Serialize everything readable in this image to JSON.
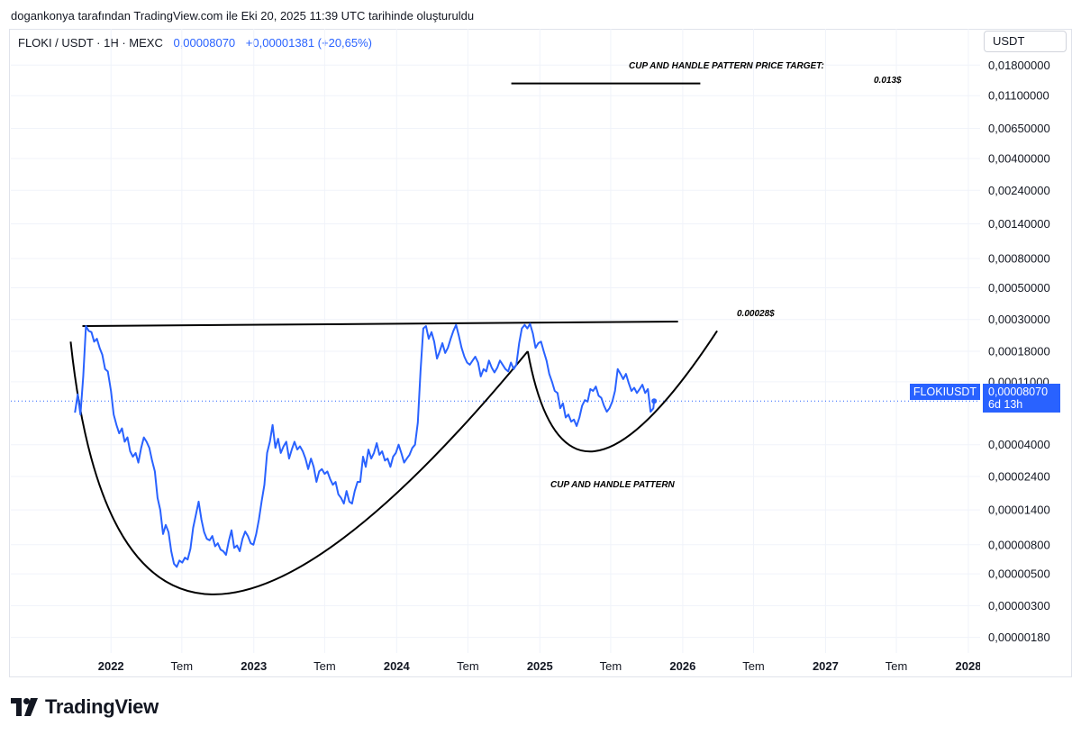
{
  "caption": "dogankonya tarafından TradingView.com ile Eki 20, 2025 11:39 UTC tarihinde oluşturuldu",
  "legend": {
    "symbol": "FLOKI / USDT · 1H · MEXC",
    "price": "0,00008070",
    "change": "+0,00001381 (+20,65%)"
  },
  "unit_label": "USDT",
  "price_tag": {
    "symbol": "FLOKIUSDT",
    "price": "0,00008070",
    "countdown": "6d 13h"
  },
  "brand": "TradingView",
  "colors": {
    "series": "#2962ff",
    "annotation": "#000000",
    "grid": "#f0f3fa",
    "tag": "#2962ff"
  },
  "chart_data": {
    "type": "line",
    "y_scale": "log",
    "ylim": [
      1.4e-06,
      0.0215
    ],
    "xlim": [
      "2021-04-20",
      "2028-01-31"
    ],
    "grid": true,
    "y_ticks": [
      {
        "value": 0.018,
        "label": "0,01800000"
      },
      {
        "value": 0.011,
        "label": "0,01100000"
      },
      {
        "value": 0.0065,
        "label": "0,00650000"
      },
      {
        "value": 0.004,
        "label": "0,00400000"
      },
      {
        "value": 0.0024,
        "label": "0,00240000"
      },
      {
        "value": 0.0014,
        "label": "0,00140000"
      },
      {
        "value": 0.0008,
        "label": "0,00080000"
      },
      {
        "value": 0.0005,
        "label": "0,00050000"
      },
      {
        "value": 0.0003,
        "label": "0,00030000"
      },
      {
        "value": 0.00018,
        "label": "0,00018000"
      },
      {
        "value": 0.00011,
        "label": "0,00011000"
      },
      {
        "value": 4e-05,
        "label": "0,00004000"
      },
      {
        "value": 2.4e-05,
        "label": "0,00002400"
      },
      {
        "value": 1.4e-05,
        "label": "0,00001400"
      },
      {
        "value": 8e-06,
        "label": "0,00000800"
      },
      {
        "value": 5e-06,
        "label": "0,00000500"
      },
      {
        "value": 3e-06,
        "label": "0,00000300"
      },
      {
        "value": 1.8e-06,
        "label": "0,00000180"
      }
    ],
    "x_ticks": [
      {
        "date": "2022-01-01",
        "label": "2022",
        "year": true
      },
      {
        "date": "2022-07-01",
        "label": "Tem",
        "year": false
      },
      {
        "date": "2023-01-01",
        "label": "2023",
        "year": true
      },
      {
        "date": "2023-07-01",
        "label": "Tem",
        "year": false
      },
      {
        "date": "2024-01-01",
        "label": "2024",
        "year": true
      },
      {
        "date": "2024-07-01",
        "label": "Tem",
        "year": false
      },
      {
        "date": "2025-01-01",
        "label": "2025",
        "year": true
      },
      {
        "date": "2025-07-01",
        "label": "Tem",
        "year": false
      },
      {
        "date": "2026-01-01",
        "label": "2026",
        "year": true
      },
      {
        "date": "2026-07-01",
        "label": "Tem",
        "year": false
      },
      {
        "date": "2027-01-01",
        "label": "2027",
        "year": true
      },
      {
        "date": "2027-07-01",
        "label": "Tem",
        "year": false
      },
      {
        "date": "2028-01-01",
        "label": "2028",
        "year": true
      }
    ],
    "last_price": 8.07e-05,
    "series": [
      {
        "points": [
          [
            "2021-10-01",
            6.7e-05
          ],
          [
            "2021-10-08",
            9e-05
          ],
          [
            "2021-10-15",
            6.5e-05
          ],
          [
            "2021-10-22",
            0.00012
          ],
          [
            "2021-10-29",
            0.00027
          ],
          [
            "2021-11-05",
            0.00025
          ],
          [
            "2021-11-12",
            0.000245
          ],
          [
            "2021-11-19",
            0.00021
          ],
          [
            "2021-11-26",
            0.00022
          ],
          [
            "2021-12-03",
            0.00019
          ],
          [
            "2021-12-10",
            0.00017
          ],
          [
            "2021-12-17",
            0.000135
          ],
          [
            "2021-12-24",
            0.00013
          ],
          [
            "2022-01-01",
            9.5e-05
          ],
          [
            "2022-01-08",
            6.5e-05
          ],
          [
            "2022-01-15",
            5.5e-05
          ],
          [
            "2022-01-22",
            4.8e-05
          ],
          [
            "2022-01-29",
            5.2e-05
          ],
          [
            "2022-02-05",
            4.2e-05
          ],
          [
            "2022-02-12",
            4.5e-05
          ],
          [
            "2022-02-19",
            3.6e-05
          ],
          [
            "2022-02-26",
            3.3e-05
          ],
          [
            "2022-03-05",
            3.5e-05
          ],
          [
            "2022-03-12",
            3e-05
          ],
          [
            "2022-03-19",
            3.8e-05
          ],
          [
            "2022-03-26",
            4.5e-05
          ],
          [
            "2022-04-02",
            4.2e-05
          ],
          [
            "2022-04-09",
            3.8e-05
          ],
          [
            "2022-04-16",
            3.1e-05
          ],
          [
            "2022-04-23",
            2.6e-05
          ],
          [
            "2022-04-30",
            1.7e-05
          ],
          [
            "2022-05-07",
            1.4e-05
          ],
          [
            "2022-05-14",
            9.5e-06
          ],
          [
            "2022-05-21",
            1.1e-05
          ],
          [
            "2022-05-28",
            9.8e-06
          ],
          [
            "2022-06-04",
            7.2e-06
          ],
          [
            "2022-06-11",
            5.9e-06
          ],
          [
            "2022-06-18",
            5.6e-06
          ],
          [
            "2022-06-25",
            6.2e-06
          ],
          [
            "2022-07-02",
            6e-06
          ],
          [
            "2022-07-09",
            6.5e-06
          ],
          [
            "2022-07-16",
            6.3e-06
          ],
          [
            "2022-07-23",
            7.5e-06
          ],
          [
            "2022-07-30",
            1.05e-05
          ],
          [
            "2022-08-06",
            1.3e-05
          ],
          [
            "2022-08-13",
            1.6e-05
          ],
          [
            "2022-08-20",
            1.2e-05
          ],
          [
            "2022-08-27",
            9.8e-06
          ],
          [
            "2022-09-03",
            8.8e-06
          ],
          [
            "2022-09-10",
            8.6e-06
          ],
          [
            "2022-09-17",
            9.2e-06
          ],
          [
            "2022-09-24",
            7.8e-06
          ],
          [
            "2022-10-01",
            8.2e-06
          ],
          [
            "2022-10-08",
            7.4e-06
          ],
          [
            "2022-10-15",
            7.2e-06
          ],
          [
            "2022-10-22",
            6.8e-06
          ],
          [
            "2022-10-29",
            8.5e-06
          ],
          [
            "2022-11-05",
            1.01e-05
          ],
          [
            "2022-11-12",
            7.6e-06
          ],
          [
            "2022-11-19",
            7.9e-06
          ],
          [
            "2022-11-26",
            7.2e-06
          ],
          [
            "2022-12-03",
            8.8e-06
          ],
          [
            "2022-12-10",
            9.9e-06
          ],
          [
            "2022-12-17",
            9.2e-06
          ],
          [
            "2022-12-24",
            8.2e-06
          ],
          [
            "2022-12-31",
            8e-06
          ],
          [
            "2023-01-07",
            9.5e-06
          ],
          [
            "2023-01-14",
            1.2e-05
          ],
          [
            "2023-01-21",
            1.6e-05
          ],
          [
            "2023-01-28",
            2.1e-05
          ],
          [
            "2023-02-04",
            3.5e-05
          ],
          [
            "2023-02-11",
            4.2e-05
          ],
          [
            "2023-02-18",
            5.5e-05
          ],
          [
            "2023-02-25",
            3.8e-05
          ],
          [
            "2023-03-04",
            4.4e-05
          ],
          [
            "2023-03-11",
            3.5e-05
          ],
          [
            "2023-03-18",
            3.9e-05
          ],
          [
            "2023-03-25",
            4.2e-05
          ],
          [
            "2023-04-01",
            3.2e-05
          ],
          [
            "2023-04-08",
            3.7e-05
          ],
          [
            "2023-04-15",
            4.2e-05
          ],
          [
            "2023-04-22",
            3.7e-05
          ],
          [
            "2023-04-29",
            3.9e-05
          ],
          [
            "2023-05-06",
            3.6e-05
          ],
          [
            "2023-05-13",
            3.2e-05
          ],
          [
            "2023-05-20",
            2.7e-05
          ],
          [
            "2023-05-27",
            3.2e-05
          ],
          [
            "2023-06-03",
            2.8e-05
          ],
          [
            "2023-06-10",
            2.2e-05
          ],
          [
            "2023-06-17",
            2.6e-05
          ],
          [
            "2023-06-24",
            2.7e-05
          ],
          [
            "2023-07-01",
            2.5e-05
          ],
          [
            "2023-07-08",
            2.6e-05
          ],
          [
            "2023-07-15",
            2.3e-05
          ],
          [
            "2023-07-22",
            2.1e-05
          ],
          [
            "2023-07-29",
            2.2e-05
          ],
          [
            "2023-08-05",
            1.8e-05
          ],
          [
            "2023-08-12",
            1.7e-05
          ],
          [
            "2023-08-19",
            1.55e-05
          ],
          [
            "2023-08-26",
            1.9e-05
          ],
          [
            "2023-09-02",
            1.6e-05
          ],
          [
            "2023-09-09",
            1.55e-05
          ],
          [
            "2023-09-16",
            1.9e-05
          ],
          [
            "2023-09-23",
            2.2e-05
          ],
          [
            "2023-09-30",
            2.2e-05
          ],
          [
            "2023-10-07",
            3.3e-05
          ],
          [
            "2023-10-14",
            2.8e-05
          ],
          [
            "2023-10-21",
            3.7e-05
          ],
          [
            "2023-10-28",
            3.2e-05
          ],
          [
            "2023-11-04",
            3.5e-05
          ],
          [
            "2023-11-11",
            4.1e-05
          ],
          [
            "2023-11-18",
            3.4e-05
          ],
          [
            "2023-11-25",
            3.6e-05
          ],
          [
            "2023-12-02",
            3.1e-05
          ],
          [
            "2023-12-09",
            3.2e-05
          ],
          [
            "2023-12-16",
            2.8e-05
          ],
          [
            "2023-12-23",
            3.3e-05
          ],
          [
            "2023-12-30",
            3.5e-05
          ],
          [
            "2024-01-06",
            4e-05
          ],
          [
            "2024-01-13",
            3.5e-05
          ],
          [
            "2024-01-20",
            3e-05
          ],
          [
            "2024-01-27",
            3.2e-05
          ],
          [
            "2024-02-03",
            3.4e-05
          ],
          [
            "2024-02-10",
            3.8e-05
          ],
          [
            "2024-02-17",
            4e-05
          ],
          [
            "2024-02-24",
            5.7e-05
          ],
          [
            "2024-03-02",
            0.00013
          ],
          [
            "2024-03-09",
            0.00026
          ],
          [
            "2024-03-16",
            0.00027
          ],
          [
            "2024-03-23",
            0.00022
          ],
          [
            "2024-03-30",
            0.000245
          ],
          [
            "2024-04-06",
            0.00021
          ],
          [
            "2024-04-13",
            0.00016
          ],
          [
            "2024-04-20",
            0.00018
          ],
          [
            "2024-04-27",
            0.000205
          ],
          [
            "2024-05-04",
            0.000175
          ],
          [
            "2024-05-11",
            0.00019
          ],
          [
            "2024-05-18",
            0.00022
          ],
          [
            "2024-05-25",
            0.00025
          ],
          [
            "2024-06-01",
            0.000275
          ],
          [
            "2024-06-08",
            0.00023
          ],
          [
            "2024-06-15",
            0.00019
          ],
          [
            "2024-06-22",
            0.000165
          ],
          [
            "2024-06-29",
            0.00015
          ],
          [
            "2024-07-06",
            0.000145
          ],
          [
            "2024-07-13",
            0.000155
          ],
          [
            "2024-07-20",
            0.000165
          ],
          [
            "2024-07-27",
            0.00015
          ],
          [
            "2024-08-03",
            0.00012
          ],
          [
            "2024-08-10",
            0.000135
          ],
          [
            "2024-08-17",
            0.00013
          ],
          [
            "2024-08-24",
            0.000155
          ],
          [
            "2024-08-31",
            0.000138
          ],
          [
            "2024-09-07",
            0.000128
          ],
          [
            "2024-09-14",
            0.000138
          ],
          [
            "2024-09-21",
            0.000155
          ],
          [
            "2024-09-28",
            0.000145
          ],
          [
            "2024-10-05",
            0.000135
          ],
          [
            "2024-10-12",
            0.00013
          ],
          [
            "2024-10-19",
            0.00015
          ],
          [
            "2024-10-26",
            0.000135
          ],
          [
            "2024-11-02",
            0.000145
          ],
          [
            "2024-11-09",
            0.000205
          ],
          [
            "2024-11-16",
            0.00026
          ],
          [
            "2024-11-23",
            0.000275
          ],
          [
            "2024-11-30",
            0.00026
          ],
          [
            "2024-12-07",
            0.00028
          ],
          [
            "2024-12-14",
            0.00024
          ],
          [
            "2024-12-21",
            0.00019
          ],
          [
            "2024-12-28",
            0.000205
          ],
          [
            "2025-01-04",
            0.00021
          ],
          [
            "2025-01-11",
            0.00018
          ],
          [
            "2025-01-18",
            0.000155
          ],
          [
            "2025-01-25",
            0.000125
          ],
          [
            "2025-02-01",
            0.00011
          ],
          [
            "2025-02-08",
            9.5e-05
          ],
          [
            "2025-02-15",
            9.2e-05
          ],
          [
            "2025-02-22",
            7.2e-05
          ],
          [
            "2025-03-01",
            7.8e-05
          ],
          [
            "2025-03-08",
            6.2e-05
          ],
          [
            "2025-03-15",
            6.5e-05
          ],
          [
            "2025-03-22",
            5.8e-05
          ],
          [
            "2025-03-29",
            6e-05
          ],
          [
            "2025-04-05",
            5.4e-05
          ],
          [
            "2025-04-12",
            6.2e-05
          ],
          [
            "2025-04-19",
            7.5e-05
          ],
          [
            "2025-04-26",
            8.2e-05
          ],
          [
            "2025-05-03",
            8e-05
          ],
          [
            "2025-05-10",
            9.8e-05
          ],
          [
            "2025-05-17",
            9.5e-05
          ],
          [
            "2025-05-24",
            0.000102
          ],
          [
            "2025-05-31",
            8.8e-05
          ],
          [
            "2025-06-07",
            8.5e-05
          ],
          [
            "2025-06-14",
            7.5e-05
          ],
          [
            "2025-06-21",
            6.8e-05
          ],
          [
            "2025-06-28",
            7.2e-05
          ],
          [
            "2025-07-05",
            8e-05
          ],
          [
            "2025-07-12",
            9.5e-05
          ],
          [
            "2025-07-19",
            0.000135
          ],
          [
            "2025-07-26",
            0.000125
          ],
          [
            "2025-08-02",
            0.000115
          ],
          [
            "2025-08-09",
            0.000125
          ],
          [
            "2025-08-16",
            0.000108
          ],
          [
            "2025-08-23",
            9.5e-05
          ],
          [
            "2025-08-30",
            0.0001
          ],
          [
            "2025-09-06",
            9.2e-05
          ],
          [
            "2025-09-13",
            9.8e-05
          ],
          [
            "2025-09-20",
            0.000105
          ],
          [
            "2025-09-27",
            9.2e-05
          ],
          [
            "2025-10-04",
            9.8e-05
          ],
          [
            "2025-10-11",
            6.8e-05
          ],
          [
            "2025-10-18",
            7.2e-05
          ],
          [
            "2025-10-20",
            8.07e-05
          ]
        ]
      }
    ],
    "annotations": {
      "cup_label": "CUP AND HANDLE PATTERN",
      "target_label": "CUP AND HANDLE PATTERN PRICE TARGET:",
      "target_value_label": "0.013$",
      "resistance_label": "0.00028$",
      "resistance_line": [
        [
          "2021-10-20",
          0.00027
        ],
        [
          "2025-12-20",
          0.00029
        ]
      ],
      "target_line": [
        [
          "2024-10-20",
          0.0134
        ],
        [
          "2026-02-15",
          0.0134
        ]
      ],
      "cup_curve": [
        [
          "2021-09-20",
          0.00021
        ],
        [
          "2022-09-15",
          3.6e-06
        ],
        [
          "2024-12-01",
          0.00018
        ]
      ],
      "handle_curve": [
        [
          "2024-12-01",
          0.00018
        ],
        [
          "2025-05-20",
          3.6e-05
        ],
        [
          "2026-03-30",
          0.00025
        ]
      ]
    }
  }
}
